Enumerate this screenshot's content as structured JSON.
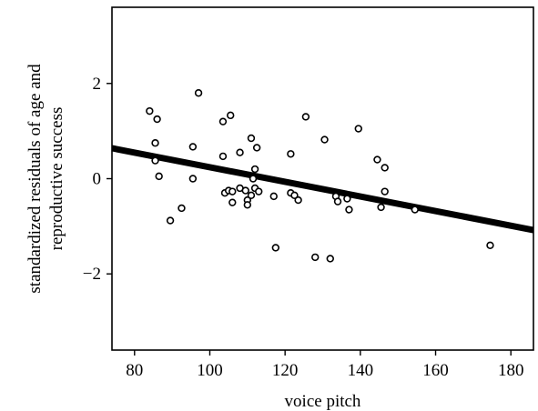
{
  "chart_data": {
    "type": "scatter",
    "xlabel": "voice pitch",
    "ylabel_lines": [
      "standardized residuals of age and",
      "reproductive success"
    ],
    "xlim": [
      74,
      186
    ],
    "ylim": [
      -3.6,
      3.6
    ],
    "x_ticks": [
      80,
      100,
      120,
      140,
      160,
      180
    ],
    "y_ticks": [
      2,
      0,
      -2
    ],
    "y_tick_labels": [
      "2",
      "0",
      "−2"
    ],
    "grid": false,
    "marker": "open-circle",
    "points": [
      {
        "x": 84,
        "y": 1.42
      },
      {
        "x": 86,
        "y": 1.25
      },
      {
        "x": 85.5,
        "y": 0.75
      },
      {
        "x": 85.5,
        "y": 0.38
      },
      {
        "x": 86.5,
        "y": 0.05
      },
      {
        "x": 89.5,
        "y": -0.88
      },
      {
        "x": 92.5,
        "y": -0.62
      },
      {
        "x": 95.5,
        "y": 0.67
      },
      {
        "x": 95.5,
        "y": 0.0
      },
      {
        "x": 97,
        "y": 1.8
      },
      {
        "x": 103.5,
        "y": 1.2
      },
      {
        "x": 105.5,
        "y": 1.33
      },
      {
        "x": 103.5,
        "y": 0.47
      },
      {
        "x": 104,
        "y": -0.3
      },
      {
        "x": 105,
        "y": -0.25
      },
      {
        "x": 106,
        "y": -0.27
      },
      {
        "x": 106,
        "y": -0.5
      },
      {
        "x": 108,
        "y": 0.55
      },
      {
        "x": 108,
        "y": -0.2
      },
      {
        "x": 109.5,
        "y": -0.25
      },
      {
        "x": 110,
        "y": -0.45
      },
      {
        "x": 110,
        "y": -0.55
      },
      {
        "x": 111,
        "y": 0.85
      },
      {
        "x": 111.5,
        "y": 0.0
      },
      {
        "x": 111,
        "y": -0.35
      },
      {
        "x": 112.5,
        "y": 0.65
      },
      {
        "x": 112,
        "y": 0.2
      },
      {
        "x": 112,
        "y": -0.2
      },
      {
        "x": 113,
        "y": -0.27
      },
      {
        "x": 117,
        "y": -0.37
      },
      {
        "x": 117.5,
        "y": -1.45
      },
      {
        "x": 121.5,
        "y": 0.52
      },
      {
        "x": 121.5,
        "y": -0.3
      },
      {
        "x": 122.5,
        "y": -0.35
      },
      {
        "x": 123.5,
        "y": -0.45
      },
      {
        "x": 125.5,
        "y": 1.3
      },
      {
        "x": 128,
        "y": -1.65
      },
      {
        "x": 130.5,
        "y": 0.82
      },
      {
        "x": 132,
        "y": -1.68
      },
      {
        "x": 133.5,
        "y": -0.37
      },
      {
        "x": 134,
        "y": -0.48
      },
      {
        "x": 136.5,
        "y": -0.42
      },
      {
        "x": 137,
        "y": -0.65
      },
      {
        "x": 139.5,
        "y": 1.05
      },
      {
        "x": 144.5,
        "y": 0.4
      },
      {
        "x": 145.5,
        "y": -0.6
      },
      {
        "x": 146.5,
        "y": 0.23
      },
      {
        "x": 146.5,
        "y": -0.27
      },
      {
        "x": 154.5,
        "y": -0.65
      },
      {
        "x": 174.5,
        "y": -1.4
      }
    ],
    "trendline": {
      "x": [
        74,
        186
      ],
      "y": [
        0.64,
        -1.08
      ]
    }
  }
}
